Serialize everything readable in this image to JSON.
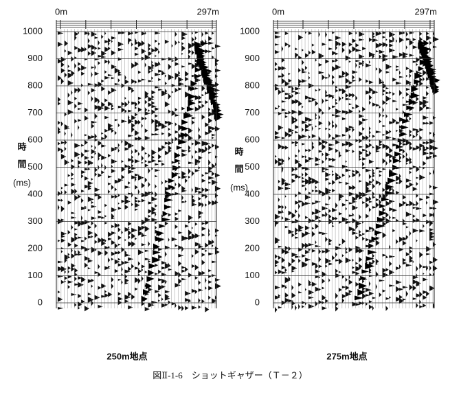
{
  "panels": [
    {
      "x_start": "0m",
      "x_end": "297m",
      "y_label_1": "時",
      "y_label_2": "間",
      "y_unit": "(ms)",
      "ylim": [
        0,
        1000
      ],
      "yticks": [
        0,
        100,
        200,
        300,
        400,
        500,
        600,
        700,
        800,
        900,
        1000
      ],
      "caption": "250m地点"
    },
    {
      "x_start": "0m",
      "x_end": "297m",
      "y_label_1": "時",
      "y_label_2": "間",
      "y_unit": "(ms)",
      "ylim": [
        0,
        1000
      ],
      "yticks": [
        0,
        100,
        200,
        300,
        400,
        500,
        600,
        700,
        800,
        900,
        1000
      ],
      "caption": "275m地点"
    }
  ],
  "figure_caption": "図Ⅱ-1-6　ショットギャザー（Ｔ－２）"
}
